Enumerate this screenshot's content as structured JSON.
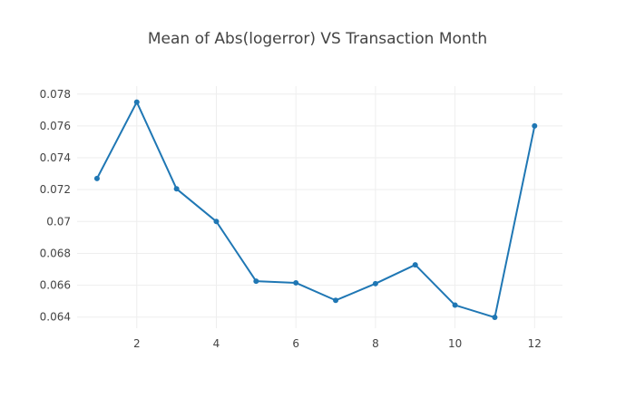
{
  "chart_data": {
    "type": "line",
    "title": "Mean of Abs(logerror) VS Transaction Month",
    "xlabel": "",
    "ylabel": "",
    "x": [
      1,
      2,
      3,
      4,
      5,
      6,
      7,
      8,
      9,
      10,
      11,
      12
    ],
    "series": [
      {
        "values": [
          0.0727,
          0.0775,
          0.07205,
          0.07,
          0.06625,
          0.06615,
          0.06505,
          0.0661,
          0.06728,
          0.06475,
          0.06398,
          0.076
        ],
        "color": "#1f77b4",
        "mode": "lines+markers"
      }
    ],
    "xlim": [
      0.5,
      12.7
    ],
    "ylim": [
      0.0633,
      0.0785
    ],
    "xticks": [
      2,
      4,
      6,
      8,
      10,
      12
    ],
    "xtick_labels": [
      "2",
      "4",
      "6",
      "8",
      "10",
      "12"
    ],
    "yticks": [
      0.064,
      0.066,
      0.068,
      0.07,
      0.072,
      0.074,
      0.076,
      0.078
    ],
    "ytick_labels": [
      "0.064",
      "0.066",
      "0.068",
      "0.07",
      "0.072",
      "0.074",
      "0.076",
      "0.078"
    ],
    "grid": true,
    "legend": "none"
  }
}
